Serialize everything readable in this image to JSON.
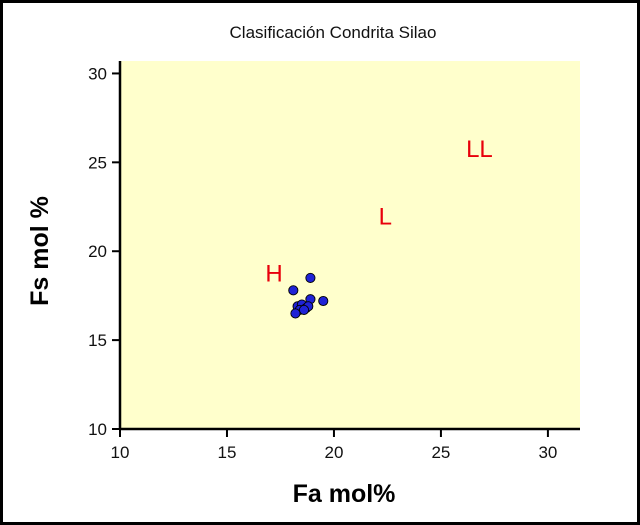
{
  "chart_data": {
    "type": "scatter",
    "title": "Clasificación Condrita Silao",
    "xlabel": "Fa mol%",
    "ylabel": "Fs mol %",
    "xlim": [
      10,
      31.5
    ],
    "ylim": [
      10,
      30.7
    ],
    "xticks": [
      10,
      15,
      20,
      25,
      30
    ],
    "yticks": [
      10,
      15,
      20,
      25,
      30
    ],
    "grid": false,
    "background_color": "#ffffcc",
    "marker_color": "#1f22d6",
    "label_color": "#e8000b",
    "annotations": [
      {
        "text": "H",
        "x": 17.2,
        "y": 18.3
      },
      {
        "text": "L",
        "x": 22.4,
        "y": 21.5
      },
      {
        "text": "LL",
        "x": 26.8,
        "y": 25.3
      }
    ],
    "series": [
      {
        "x": [
          18.1,
          18.9,
          18.9,
          19.5,
          18.3,
          18.5,
          18.7,
          18.8,
          18.4,
          18.6,
          18.2
        ],
        "y": [
          17.8,
          18.5,
          17.3,
          17.2,
          16.9,
          17.0,
          16.8,
          16.9,
          16.7,
          16.7,
          16.5
        ]
      }
    ]
  }
}
